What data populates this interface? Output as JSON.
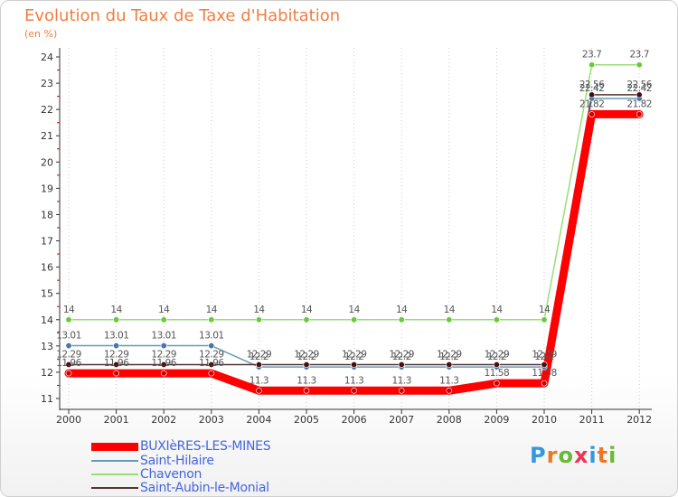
{
  "chart_data": {
    "type": "line",
    "title": "Evolution du Taux de Taxe d'Habitation",
    "ylabel": "(en %)",
    "xlabel": "",
    "ylim": [
      11,
      24
    ],
    "yticks": [
      11,
      12,
      13,
      14,
      15,
      16,
      17,
      18,
      19,
      20,
      21,
      22,
      23,
      24
    ],
    "categories": [
      "2000",
      "2001",
      "2002",
      "2003",
      "2004",
      "2005",
      "2006",
      "2007",
      "2008",
      "2009",
      "2010",
      "2011",
      "2012"
    ],
    "series": [
      {
        "name": "BUXIèRES-LES-MINES",
        "color": "#ff0000",
        "marker": "#cc0000",
        "values": [
          11.96,
          11.96,
          11.96,
          11.96,
          11.3,
          11.3,
          11.3,
          11.3,
          11.3,
          11.58,
          11.58,
          21.82,
          21.82
        ],
        "labels": [
          "11.96",
          "11.96",
          "11.96",
          "11.96",
          "11.3",
          "11.3",
          "11.3",
          "11.3",
          "11.3",
          "11.58",
          "11.58",
          "21.82",
          "21.82"
        ]
      },
      {
        "name": "Saint-Hilaire",
        "color": "#6699bb",
        "marker": "#4477aa",
        "values": [
          13.01,
          13.01,
          13.01,
          13.01,
          12.2,
          12.2,
          12.2,
          12.2,
          12.2,
          12.2,
          12.2,
          22.42,
          22.42
        ],
        "labels": [
          "13.01",
          "13.01",
          "13.01",
          "13.01",
          "12.2",
          "12.2",
          "12.2",
          "12.2",
          "12.2",
          "12.2",
          "12.2",
          "22.42",
          "22.42"
        ]
      },
      {
        "name": "Chavenon",
        "color": "#99dd77",
        "marker": "#66cc33",
        "values": [
          14,
          14,
          14,
          14,
          14,
          14,
          14,
          14,
          14,
          14,
          14,
          23.7,
          23.7
        ],
        "labels": [
          "14",
          "14",
          "14",
          "14",
          "14",
          "14",
          "14",
          "14",
          "14",
          "14",
          "14",
          "23.7",
          "23.7"
        ]
      },
      {
        "name": "Saint-Aubin-le-Monial",
        "color": "#553333",
        "marker": "#441111",
        "values": [
          12.29,
          12.29,
          12.29,
          12.29,
          12.29,
          12.29,
          12.29,
          12.29,
          12.29,
          12.29,
          12.29,
          22.56,
          22.56
        ],
        "labels": [
          "12.29",
          "12.29",
          "12.29",
          "12.29",
          "12.29",
          "12.29",
          "12.29",
          "12.29",
          "12.29",
          "12.29",
          "12.29",
          "22.56",
          "22.56"
        ]
      }
    ]
  },
  "logo": {
    "letters": [
      "P",
      "r",
      "o",
      "x",
      "i",
      "t",
      "i"
    ],
    "colors": [
      "#3399dd",
      "#ee7722",
      "#66bb33",
      "#ee3355",
      "#3399dd",
      "#ee7722",
      "#66bb33"
    ]
  }
}
